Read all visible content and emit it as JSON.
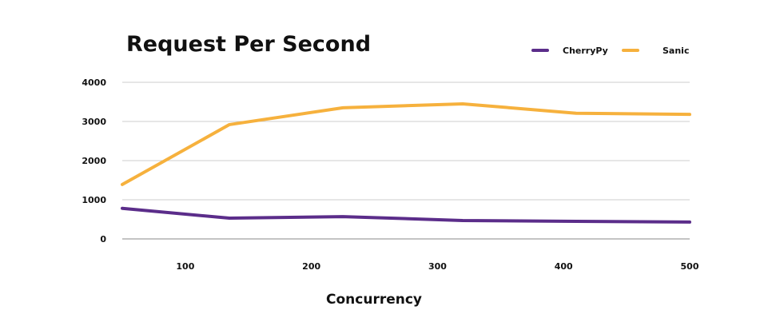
{
  "chart_data": {
    "type": "line",
    "title": "Request Per Second",
    "xlabel": "Concurrency",
    "ylabel": "",
    "x": [
      50,
      135,
      225,
      320,
      410,
      500
    ],
    "xticks": [
      100,
      200,
      300,
      400,
      500
    ],
    "xlim": [
      50,
      500
    ],
    "yticks": [
      0,
      1000,
      2000,
      3000,
      4000
    ],
    "ylim": [
      0,
      4000
    ],
    "grid": true,
    "legend": "top-right",
    "series": [
      {
        "name": "CherryPy",
        "color": "#5b2d8a",
        "values": [
          780,
          530,
          570,
          470,
          450,
          430
        ]
      },
      {
        "name": "Sanic",
        "color": "#f6b13d",
        "values": [
          1390,
          2920,
          3350,
          3450,
          3210,
          3180
        ]
      }
    ]
  }
}
